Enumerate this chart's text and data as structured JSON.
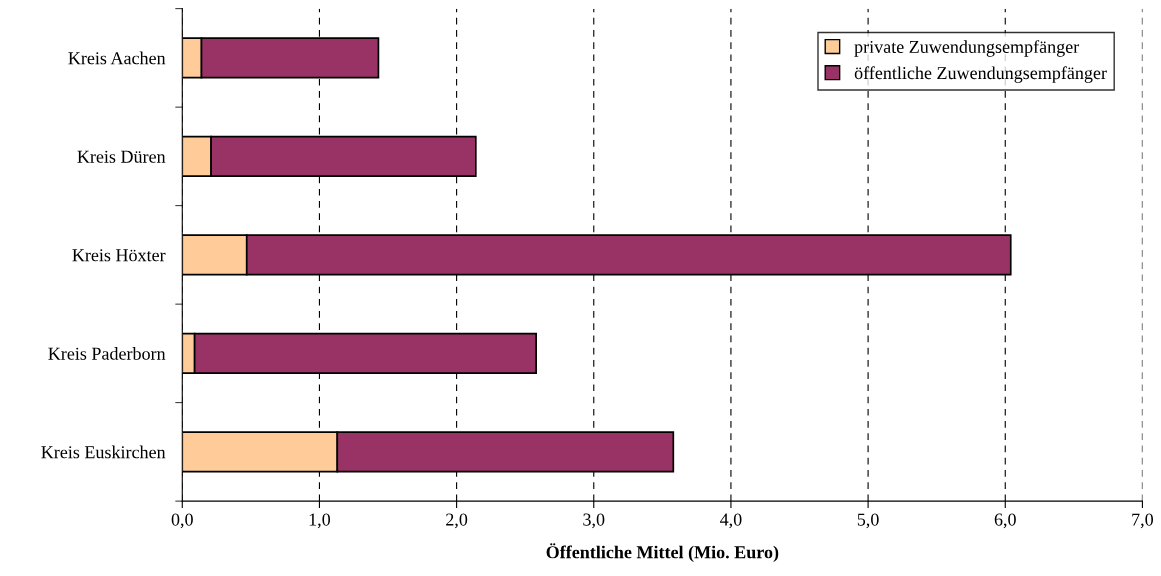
{
  "chart_data": {
    "type": "bar",
    "orientation": "horizontal",
    "stacked": true,
    "categories": [
      "Kreis Aachen",
      "Kreis Düren",
      "Kreis Höxter",
      "Kreis Paderborn",
      "Kreis Euskirchen"
    ],
    "series": [
      {
        "name": "private Zuwendungsempfänger",
        "color": "#ffcc99",
        "values": [
          0.14,
          0.21,
          0.47,
          0.09,
          1.13
        ]
      },
      {
        "name": "öffentliche Zuwendungsempfänger",
        "color": "#993366",
        "values": [
          1.29,
          1.93,
          5.57,
          2.49,
          2.45
        ]
      }
    ],
    "xlabel": "Öffentliche Mittel (Mio. Euro)",
    "xlim": [
      0,
      7
    ],
    "xticks": [
      {
        "value": 0,
        "label": "0,0"
      },
      {
        "value": 1,
        "label": "1,0"
      },
      {
        "value": 2,
        "label": "2,0"
      },
      {
        "value": 3,
        "label": "3,0"
      },
      {
        "value": 4,
        "label": "4,0"
      },
      {
        "value": 5,
        "label": "5,0"
      },
      {
        "value": 6,
        "label": "6,0"
      },
      {
        "value": 7,
        "label": "7,0"
      }
    ],
    "grid": "x",
    "legend": "top right"
  }
}
